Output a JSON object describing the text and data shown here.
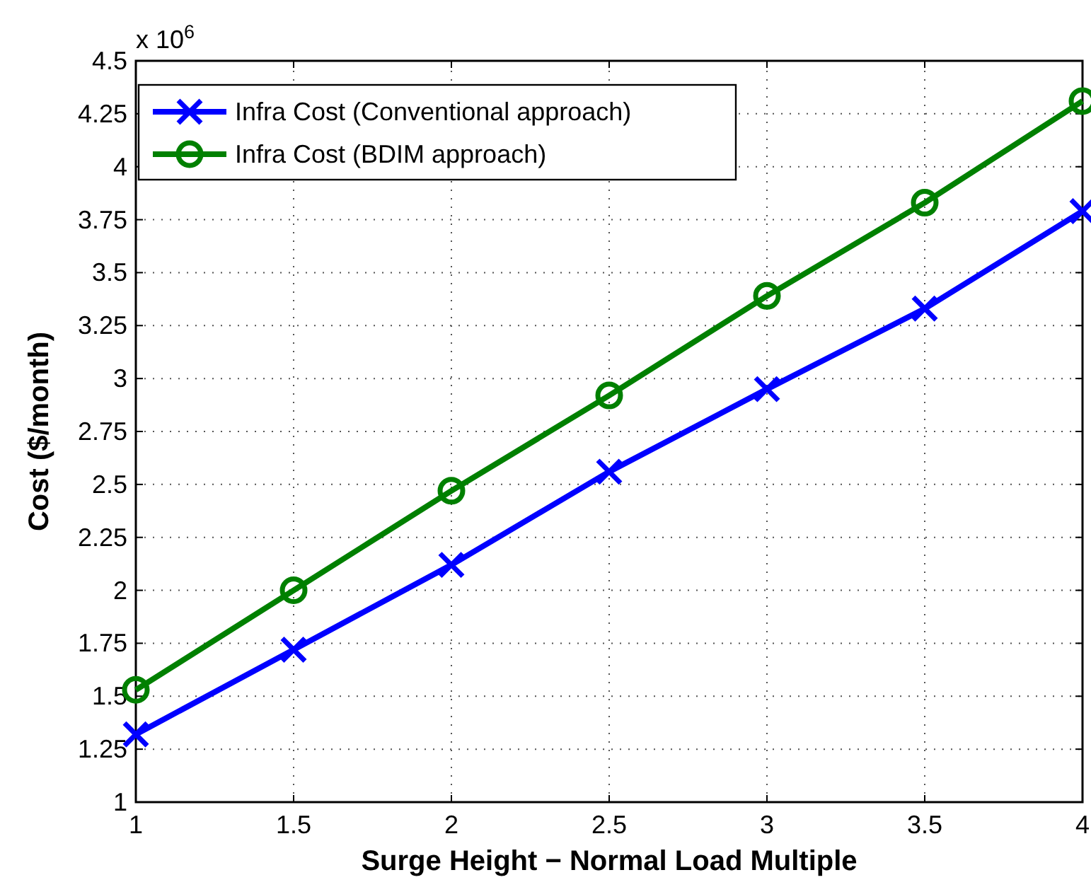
{
  "chart_data": {
    "type": "line",
    "xlabel": "Surge Height − Normal Load Multiple",
    "ylabel": "Cost ($/month)",
    "annotations": [
      "x 10$^{6}$"
    ],
    "x": [
      1,
      1.5,
      2,
      2.5,
      3,
      3.5,
      4
    ],
    "series": [
      {
        "name": "Infra Cost (Conventional approach)",
        "color": "#0000ff",
        "marker": "cross",
        "values": [
          1.32,
          1.72,
          2.12,
          2.56,
          2.95,
          3.33,
          3.79
        ]
      },
      {
        "name": "Infra Cost (BDIM approach)",
        "color": "#008000",
        "marker": "circle",
        "values": [
          1.53,
          2.0,
          2.47,
          2.92,
          3.39,
          3.83,
          4.31
        ]
      }
    ],
    "xlim": [
      1,
      4
    ],
    "xticks": [
      1,
      1.5,
      2,
      2.5,
      3,
      3.5,
      4
    ],
    "ylim": [
      1,
      4.5
    ],
    "yticks": [
      1,
      1.25,
      1.5,
      1.75,
      2,
      2.25,
      2.5,
      2.75,
      3,
      3.25,
      3.5,
      3.75,
      4,
      4.25,
      4.5
    ],
    "grid": true,
    "legend": "top left",
    "line_style": "solid"
  }
}
